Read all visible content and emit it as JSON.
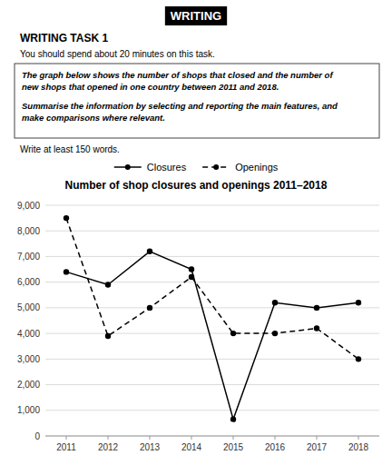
{
  "header": "WRITING",
  "task": "WRITING TASK 1",
  "subtitle": "You should spend about 20 minutes on this task.",
  "box_text": [
    "The graph below shows the number of shops that closed and the number of",
    "new shops that opened in one country between 2011 and 2018.",
    "Summarise the information by selecting and reporting the main features, and",
    "make comparisons where relevant."
  ],
  "footer": "Write at least 150 words.",
  "chart_data": {
    "type": "line",
    "title": "Number of shop closures and openings 2011–2018",
    "x": [
      2011,
      2012,
      2013,
      2014,
      2015,
      2016,
      2017,
      2018
    ],
    "xlim": [
      2010.5,
      2018.5
    ],
    "xticks": [
      2011,
      2012,
      2013,
      2014,
      2015,
      2016,
      2017,
      2018
    ],
    "ylim": [
      0,
      9000
    ],
    "yticks": [
      0,
      {
        "value": 1000,
        "label": "1,000"
      },
      {
        "value": 2000,
        "label": "2,000"
      },
      {
        "value": 3000,
        "label": "3,000"
      },
      {
        "value": 4000,
        "label": "4,000"
      },
      {
        "value": 5000,
        "label": "5,000"
      },
      {
        "value": 6000,
        "label": "6,000"
      },
      {
        "value": 7000,
        "label": "7,000"
      },
      {
        "value": 8000,
        "label": "8,000"
      },
      {
        "value": 9000,
        "label": "9,000"
      }
    ],
    "grid": true,
    "legend": "top",
    "series": [
      {
        "name": "Closures",
        "color": "#000000",
        "line_style": "solid",
        "marker": "circle",
        "values": [
          6400,
          5900,
          7200,
          6500,
          650,
          5200,
          5000,
          5200
        ]
      },
      {
        "name": "Openings",
        "color": "#000000",
        "line_style": "dashed",
        "marker": "circle",
        "values": [
          8500,
          3900,
          5000,
          6200,
          4000,
          4000,
          4200,
          3000
        ]
      }
    ]
  }
}
